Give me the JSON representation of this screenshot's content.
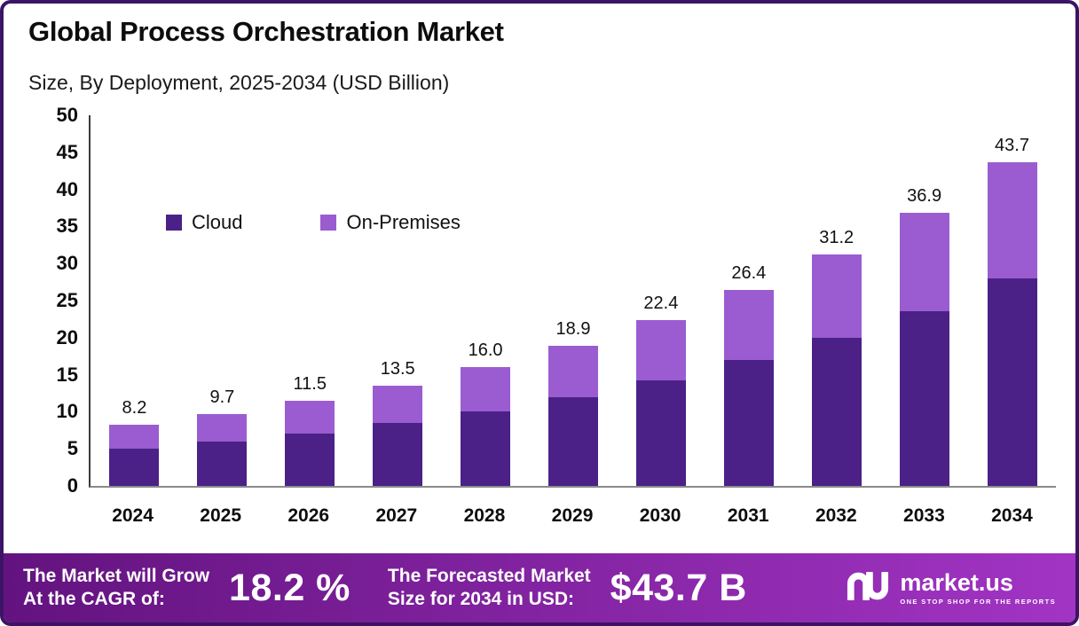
{
  "title": "Global Process Orchestration Market",
  "subtitle": "Size, By Deployment, 2025-2034 (USD Billion)",
  "chart_data": {
    "type": "bar",
    "stacked": true,
    "title": "Global Process Orchestration Market",
    "subtitle": "Size, By Deployment, 2025-2034 (USD Billion)",
    "unit": "USD Billion",
    "categories": [
      "2024",
      "2025",
      "2026",
      "2027",
      "2028",
      "2029",
      "2030",
      "2031",
      "2032",
      "2033",
      "2034"
    ],
    "series": [
      {
        "name": "Cloud",
        "color": "#4b2188",
        "values": [
          5.0,
          6.0,
          7.0,
          8.5,
          10.0,
          12.0,
          14.2,
          17.0,
          20.0,
          23.6,
          28.0
        ]
      },
      {
        "name": "On-Premises",
        "color": "#9a5cd0",
        "values": [
          3.2,
          3.7,
          4.5,
          5.0,
          6.0,
          6.9,
          8.2,
          9.4,
          11.2,
          13.3,
          15.7
        ]
      }
    ],
    "totals": [
      8.2,
      9.7,
      11.5,
      13.5,
      16.0,
      18.9,
      22.4,
      26.4,
      31.2,
      36.9,
      43.7
    ],
    "total_labels": [
      "8.2",
      "9.7",
      "11.5",
      "13.5",
      "16.0",
      "18.9",
      "22.4",
      "26.4",
      "31.2",
      "36.9",
      "43.7"
    ],
    "ylim": [
      0,
      50
    ],
    "yticks": [
      0,
      5,
      10,
      15,
      20,
      25,
      30,
      35,
      40,
      45,
      50
    ],
    "grid": false,
    "legend_position": "inside-upper-left"
  },
  "footer": {
    "cagr_label": "The Market will Grow\nAt the CAGR of:",
    "cagr_value": "18.2 %",
    "forecast_label": "The Forecasted Market\nSize for 2034 in USD:",
    "forecast_value": "$43.7 B",
    "brand": "market.us",
    "brand_tagline": "ONE STOP SHOP FOR THE REPORTS"
  },
  "colors": {
    "cloud": "#4b2188",
    "on_premises": "#9a5cd0",
    "border": "#3b1465",
    "footer_gradient_start": "#63137f",
    "footer_gradient_end": "#a234c4",
    "text": "#111111",
    "footer_text": "#ffffff"
  }
}
